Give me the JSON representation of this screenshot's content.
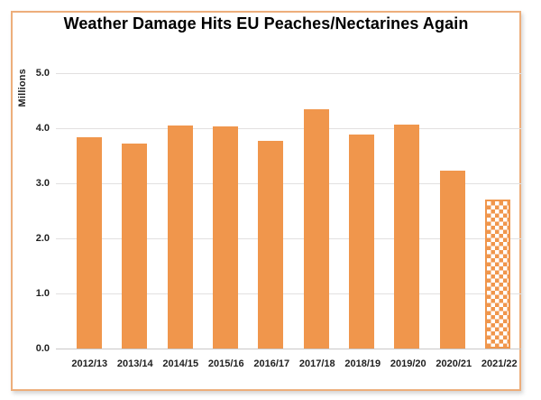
{
  "colors": {
    "bar": "#F0964C",
    "frame": "#EDAE7B",
    "grid": "#E2E0E0",
    "axis": "#C9C7C7",
    "text": "#1F1F1F",
    "title_text": "#000000",
    "bg": "#FFFFFF"
  },
  "chart_data": {
    "type": "bar",
    "title": "Weather Damage Hits EU Peaches/Nectarines Again",
    "xlabel": "",
    "ylabel": "Millions",
    "categories": [
      "2012/13",
      "2013/14",
      "2014/15",
      "2015/16",
      "2016/17",
      "2017/18",
      "2018/19",
      "2019/20",
      "2020/21",
      "2021/22"
    ],
    "values": [
      3.83,
      3.72,
      4.05,
      4.04,
      3.77,
      4.35,
      3.88,
      4.06,
      3.23,
      2.7
    ],
    "bar_patterns": [
      "solid",
      "solid",
      "solid",
      "solid",
      "solid",
      "solid",
      "solid",
      "solid",
      "solid",
      "checker"
    ],
    "ylim": [
      0,
      5
    ],
    "yticks": [
      "0.0",
      "1.0",
      "2.0",
      "3.0",
      "4.0",
      "5.0"
    ],
    "grid": true,
    "legend": "none"
  }
}
